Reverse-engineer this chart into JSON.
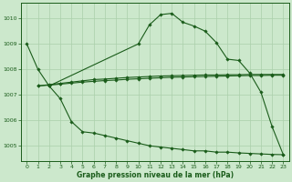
{
  "background_color": "#cce8cc",
  "grid_color": "#aacfaa",
  "line_color": "#1a5c1a",
  "marker_color": "#1a5c1a",
  "xlabel": "Graphe pression niveau de la mer (hPa)",
  "xlim": [
    -0.5,
    23.5
  ],
  "ylim": [
    1004.4,
    1010.6
  ],
  "yticks": [
    1005,
    1006,
    1007,
    1008,
    1009,
    1010
  ],
  "xticks": [
    0,
    1,
    2,
    3,
    4,
    5,
    6,
    7,
    8,
    9,
    10,
    11,
    12,
    13,
    14,
    15,
    16,
    17,
    18,
    19,
    20,
    21,
    22,
    23
  ],
  "series": [
    {
      "x": [
        0,
        1,
        2,
        10,
        11,
        12,
        13,
        14,
        15,
        16,
        17,
        18,
        19,
        20,
        21,
        22,
        23
      ],
      "y": [
        1009.0,
        1008.0,
        1007.35,
        1009.0,
        1009.75,
        1010.15,
        1010.2,
        1009.85,
        1009.7,
        1009.5,
        1009.05,
        1008.4,
        1008.35,
        1007.85,
        1007.1,
        1005.75,
        1004.65
      ]
    },
    {
      "x": [
        1,
        2,
        3,
        4,
        5,
        6,
        7,
        8,
        9,
        10,
        11,
        12,
        13,
        14,
        15,
        16,
        17,
        18,
        19,
        20,
        21,
        22,
        23
      ],
      "y": [
        1007.35,
        1007.4,
        1007.45,
        1007.5,
        1007.55,
        1007.6,
        1007.62,
        1007.65,
        1007.68,
        1007.7,
        1007.72,
        1007.74,
        1007.75,
        1007.76,
        1007.77,
        1007.78,
        1007.78,
        1007.79,
        1007.79,
        1007.8,
        1007.8,
        1007.8,
        1007.8
      ]
    },
    {
      "x": [
        1,
        2,
        3,
        4,
        5,
        6,
        7,
        8,
        9,
        10,
        11,
        12,
        13,
        14,
        15,
        16,
        17,
        18,
        19,
        20,
        21,
        22,
        23
      ],
      "y": [
        1007.35,
        1007.38,
        1007.42,
        1007.46,
        1007.5,
        1007.53,
        1007.56,
        1007.58,
        1007.61,
        1007.63,
        1007.65,
        1007.67,
        1007.69,
        1007.7,
        1007.71,
        1007.72,
        1007.73,
        1007.74,
        1007.75,
        1007.76,
        1007.76,
        1007.77,
        1007.77
      ]
    },
    {
      "x": [
        2,
        3,
        4,
        5,
        6,
        7,
        8,
        9,
        10,
        11,
        12,
        13,
        14,
        15,
        16,
        17,
        18,
        19,
        20,
        21,
        22,
        23
      ],
      "y": [
        1007.35,
        1006.85,
        1005.95,
        1005.55,
        1005.5,
        1005.4,
        1005.3,
        1005.2,
        1005.1,
        1005.0,
        1004.95,
        1004.9,
        1004.85,
        1004.8,
        1004.8,
        1004.75,
        1004.75,
        1004.72,
        1004.7,
        1004.68,
        1004.66,
        1004.65
      ]
    }
  ]
}
